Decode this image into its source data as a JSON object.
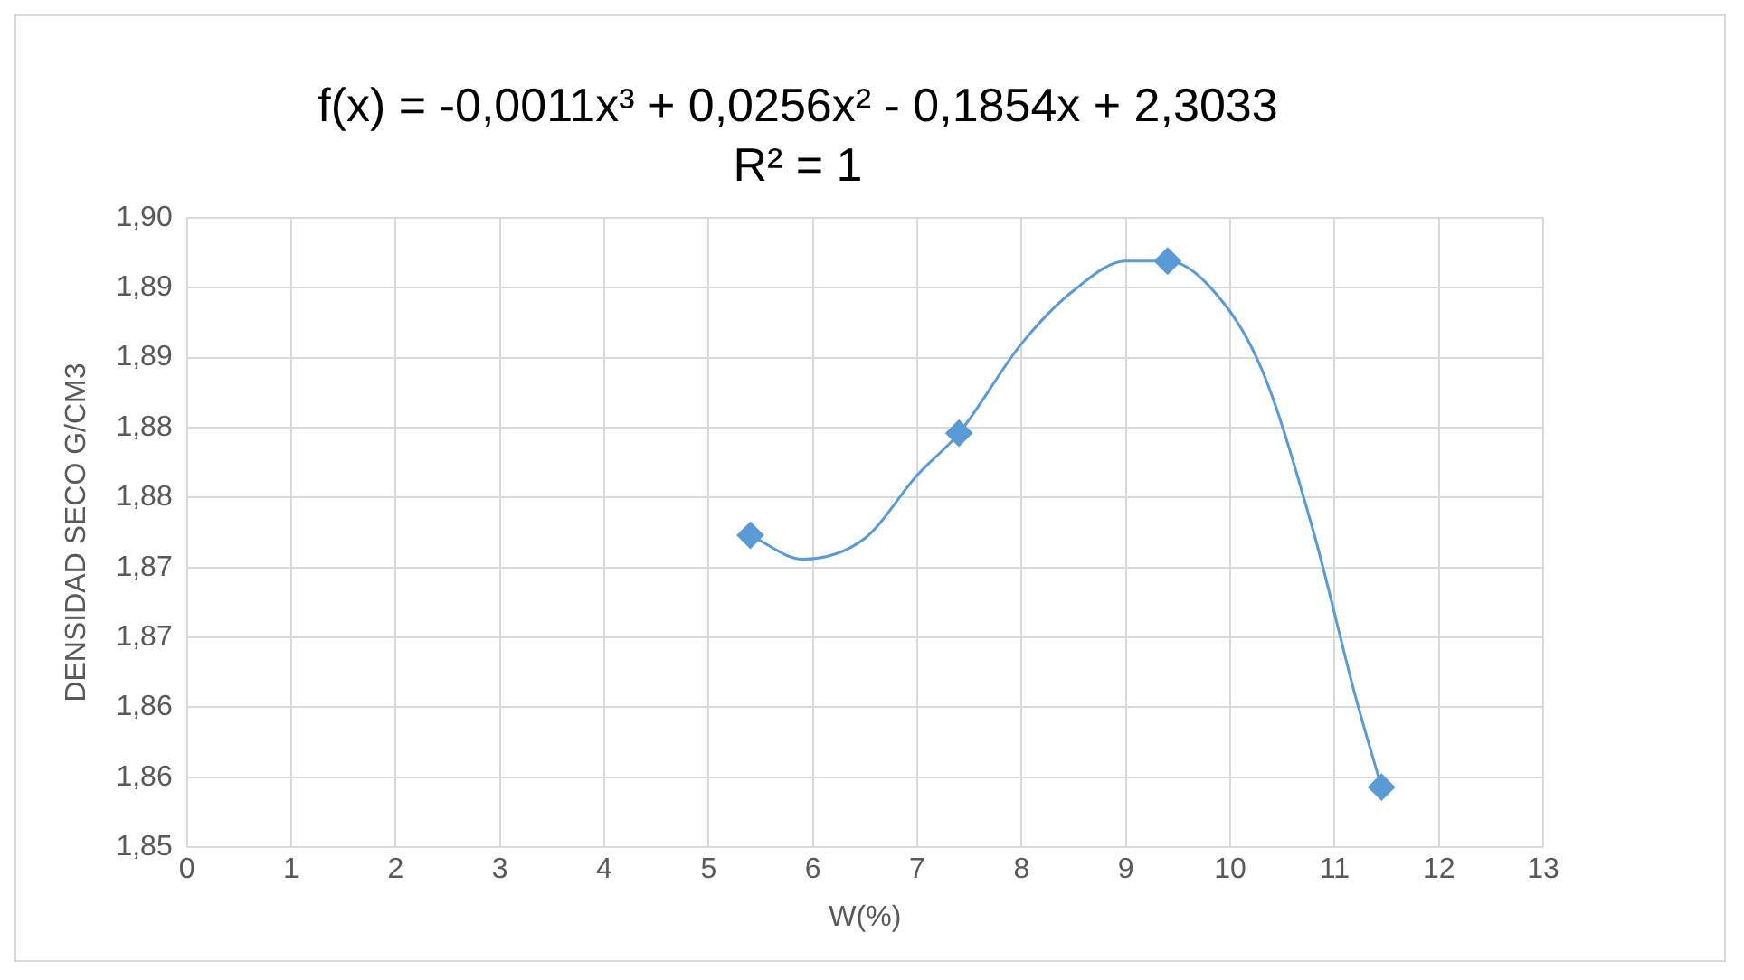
{
  "chart_data": {
    "type": "scatter",
    "title": "f(x) = -0,0011x³ + 0,0256x² - 0,1854x + 2,3033",
    "subtitle": "R² = 1",
    "xlabel": "W(%)",
    "ylabel": "DENSIDAD SECO G/CM3",
    "xlim": [
      0,
      13
    ],
    "xticks": [
      0,
      1,
      2,
      3,
      4,
      5,
      6,
      7,
      8,
      9,
      10,
      11,
      12,
      13
    ],
    "ylim": [
      1.85,
      1.895
    ],
    "yticks": [
      {
        "value": 1.85,
        "label": "1,85"
      },
      {
        "value": 1.855,
        "label": "1,86"
      },
      {
        "value": 1.86,
        "label": "1,86"
      },
      {
        "value": 1.865,
        "label": "1,87"
      },
      {
        "value": 1.87,
        "label": "1,87"
      },
      {
        "value": 1.875,
        "label": "1,88"
      },
      {
        "value": 1.88,
        "label": "1,88"
      },
      {
        "value": 1.885,
        "label": "1,89"
      },
      {
        "value": 1.89,
        "label": "1,89"
      },
      {
        "value": 1.895,
        "label": "1,90"
      }
    ],
    "grid": true,
    "legend": false,
    "marker": "diamond",
    "series": [
      {
        "type": "line",
        "color": "#5b9bd5",
        "marker": "none",
        "line_style": "solid",
        "x": [
          5.4,
          5.9,
          6.5,
          7.0,
          7.4,
          8.0,
          8.5,
          9.0,
          9.4,
          9.8,
          10.3,
          10.8,
          11.2,
          11.45
        ],
        "values": [
          1.8723,
          1.8706,
          1.8721,
          1.8766,
          1.8796,
          1.886,
          1.8898,
          1.8919,
          1.8919,
          1.8901,
          1.8842,
          1.8725,
          1.8608,
          1.8543
        ]
      },
      {
        "color": "#5b9bd5",
        "x": [
          5.4,
          7.4,
          9.4,
          11.45
        ],
        "values": [
          1.8723,
          1.8796,
          1.8919,
          1.8543
        ]
      }
    ]
  }
}
